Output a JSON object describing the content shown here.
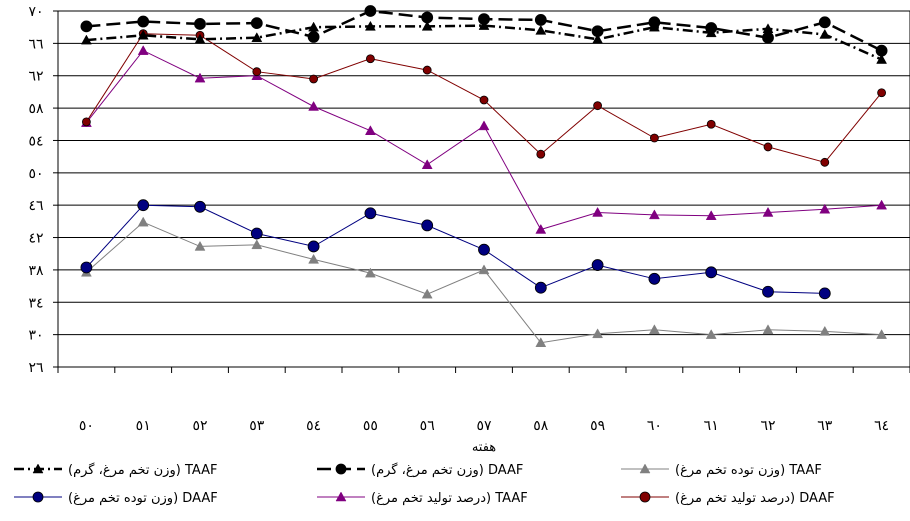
{
  "chart_data": {
    "type": "line",
    "xlabel": "هفته",
    "categories": [
      "٥٠",
      "٥١",
      "٥٢",
      "٥٣",
      "٥٤",
      "٥٥",
      "٥٦",
      "٥٧",
      "٥٨",
      "٥٩",
      "٦٠",
      "٦١",
      "٦٢",
      "٦٣",
      "٦٤"
    ],
    "ylim": [
      26,
      70
    ],
    "yticks": [
      26,
      30,
      34,
      38,
      42,
      46,
      50,
      54,
      58,
      62,
      66,
      70
    ],
    "ytick_labels": [
      "٢٦",
      "٣٠",
      "٣٤",
      "٣٨",
      "٤٢",
      "٤٦",
      "٥٠",
      "٥٤",
      "٥٨",
      "٦٢",
      "٦٦",
      "٧٠"
    ],
    "grid": true,
    "legend_position": "bottom",
    "series": [
      {
        "name": "(وزن تخم مرغ، گرم) TAAF",
        "color": "#000000",
        "marker": "triangle",
        "line": "dashdot",
        "values": [
          66.4,
          67.0,
          66.5,
          66.7,
          68.0,
          68.1,
          68.1,
          68.2,
          67.6,
          66.5,
          68.0,
          67.3,
          67.8,
          67.1,
          64.0
        ]
      },
      {
        "name": "(وزن تخم مرغ، گرم) DAAF",
        "color": "#000000",
        "marker": "circle",
        "line": "dash",
        "values": [
          68.1,
          68.7,
          68.4,
          68.5,
          66.8,
          70.0,
          69.2,
          69.0,
          68.9,
          67.5,
          68.6,
          67.9,
          66.7,
          68.6,
          65.1
        ]
      },
      {
        "name": "(وزن توده تخم مرغ) TAAF",
        "color": "#808080",
        "marker": "triangle",
        "line": "solid",
        "values": [
          37.7,
          43.9,
          40.9,
          41.1,
          39.3,
          37.6,
          35.0,
          38.0,
          29.0,
          30.1,
          30.6,
          30.0,
          30.6,
          30.4,
          30.0
        ]
      },
      {
        "name": "(وزن توده تخم مرغ) DAAF",
        "color": "#000080",
        "marker": "circle",
        "line": "solid",
        "values": [
          38.3,
          46.0,
          45.8,
          42.5,
          40.9,
          45.0,
          43.5,
          40.5,
          35.8,
          38.6,
          36.9,
          37.7,
          35.3,
          35.1,
          null
        ]
      },
      {
        "name": "(درصد تولید تخم مرغ) TAAF",
        "color": "#800080",
        "marker": "triangle",
        "line": "solid",
        "values": [
          56.2,
          65.1,
          61.7,
          62.0,
          58.2,
          55.2,
          51.0,
          55.8,
          43.0,
          45.1,
          44.8,
          44.7,
          45.1,
          45.5,
          46.0
        ]
      },
      {
        "name": "(درصد تولید تخم مرغ) DAAF",
        "color": "#800000",
        "marker": "circle",
        "line": "solid",
        "values": [
          56.3,
          67.2,
          67.0,
          62.5,
          61.6,
          64.1,
          62.7,
          59.0,
          52.3,
          58.3,
          54.3,
          56.0,
          53.2,
          51.3,
          59.9
        ]
      }
    ]
  }
}
